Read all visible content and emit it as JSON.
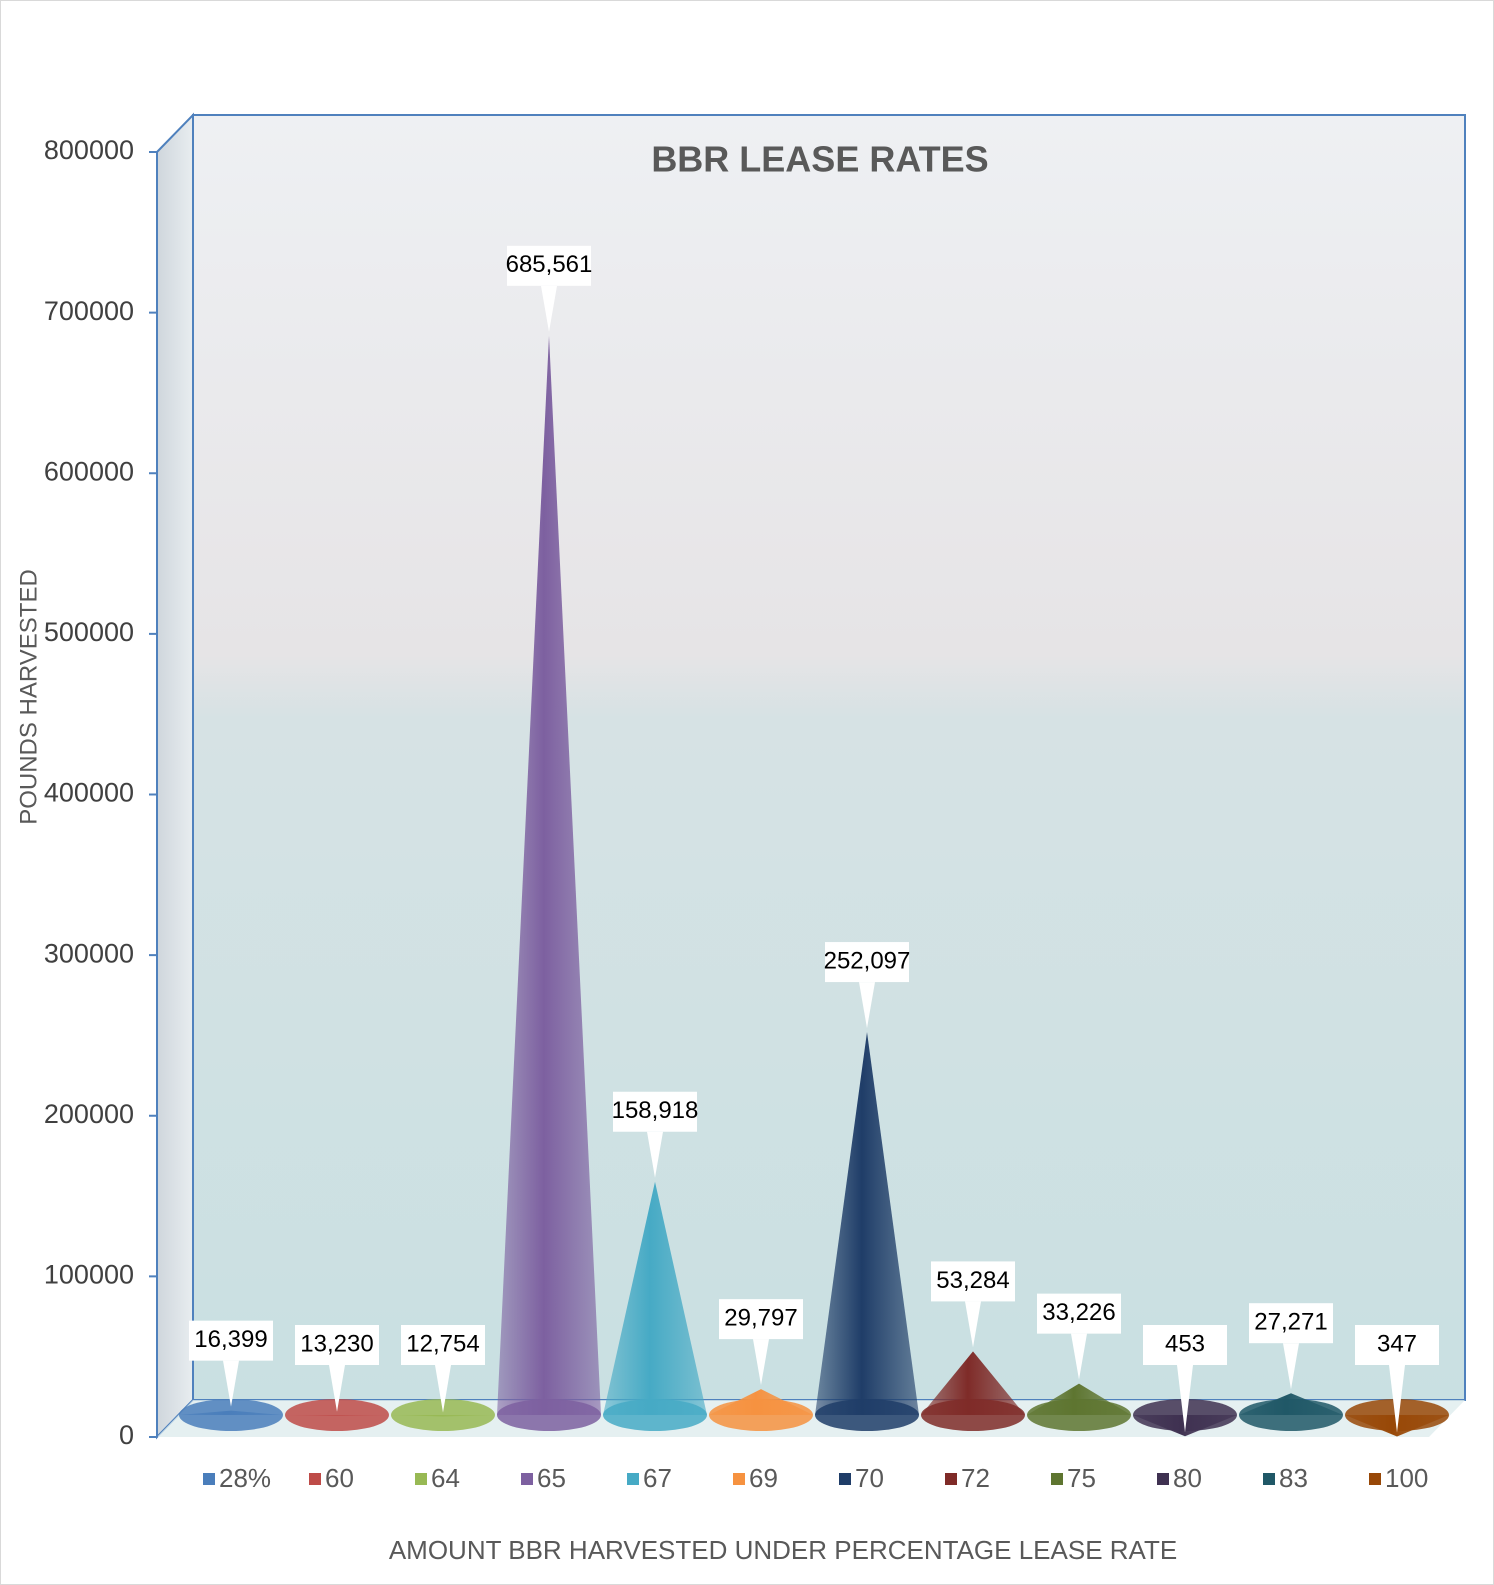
{
  "chart_data": {
    "type": "cone",
    "title": "BBR LEASE RATES",
    "y_label": "POUNDS HARVESTED",
    "x_label": "AMOUNT BBR HARVESTED UNDER PERCENTAGE LEASE RATE",
    "ylim": [
      0,
      800000
    ],
    "yticks": [
      0,
      100000,
      200000,
      300000,
      400000,
      500000,
      600000,
      700000,
      800000
    ],
    "series": [
      {
        "name": "28%",
        "color": "#4a7ebb",
        "values": [
          16399
        ],
        "value_labels": [
          "16,399"
        ]
      },
      {
        "name": "60",
        "color": "#be4b48",
        "values": [
          13230
        ],
        "value_labels": [
          "13,230"
        ]
      },
      {
        "name": "64",
        "color": "#98b954",
        "values": [
          12754
        ],
        "value_labels": [
          "12,754"
        ]
      },
      {
        "name": "65",
        "color": "#7d60a0",
        "values": [
          685561
        ],
        "value_labels": [
          "685,561"
        ]
      },
      {
        "name": "67",
        "color": "#46aac5",
        "values": [
          158918
        ],
        "value_labels": [
          "158,918"
        ]
      },
      {
        "name": "69",
        "color": "#f69240",
        "values": [
          29797
        ],
        "value_labels": [
          "29,797"
        ]
      },
      {
        "name": "70",
        "color": "#1f3d68",
        "values": [
          252097
        ],
        "value_labels": [
          "252,097"
        ]
      },
      {
        "name": "72",
        "color": "#7f2b28",
        "values": [
          53284
        ],
        "value_labels": [
          "53,284"
        ]
      },
      {
        "name": "75",
        "color": "#5e7530",
        "values": [
          33226
        ],
        "value_labels": [
          "33,226"
        ]
      },
      {
        "name": "80",
        "color": "#3f3151",
        "values": [
          453
        ],
        "value_labels": [
          "453"
        ]
      },
      {
        "name": "83",
        "color": "#205867",
        "values": [
          27271
        ],
        "value_labels": [
          "27,271"
        ]
      },
      {
        "name": "100",
        "color": "#984807",
        "values": [
          347
        ],
        "value_labels": [
          "347"
        ]
      }
    ]
  }
}
